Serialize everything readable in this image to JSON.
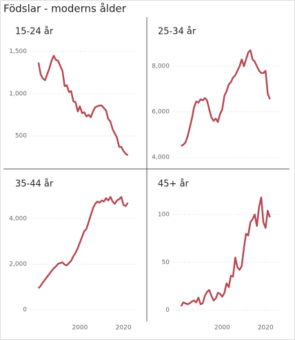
{
  "title": "Födslar - moderns ålder",
  "chart_data": [
    {
      "type": "line",
      "title": "15-24 år",
      "x": [
        1981,
        1982,
        1983,
        1984,
        1985,
        1986,
        1987,
        1988,
        1989,
        1990,
        1991,
        1992,
        1993,
        1994,
        1995,
        1996,
        1997,
        1998,
        1999,
        2000,
        2001,
        2002,
        2003,
        2004,
        2005,
        2006,
        2007,
        2008,
        2009,
        2010,
        2011,
        2012,
        2013,
        2014,
        2015,
        2016,
        2017,
        2018,
        2019,
        2020,
        2021,
        2022
      ],
      "series": [
        {
          "name": "15-24 år",
          "color": "#b8474f",
          "values": [
            1370,
            1230,
            1180,
            1160,
            1230,
            1300,
            1390,
            1450,
            1400,
            1390,
            1330,
            1270,
            1090,
            1100,
            1020,
            1030,
            910,
            900,
            790,
            850,
            770,
            780,
            730,
            750,
            720,
            790,
            840,
            850,
            860,
            860,
            830,
            800,
            700,
            670,
            580,
            530,
            480,
            370,
            370,
            320,
            290,
            270
          ]
        }
      ],
      "xlim": [
        1976,
        2025
      ],
      "ylim": [
        190,
        1620
      ],
      "yticks": [
        500,
        {
          "value": 1000,
          "label": "1,000"
        },
        {
          "value": 1500,
          "label": "1,500"
        }
      ],
      "grid": true
    },
    {
      "type": "line",
      "title": "25-34 år",
      "x": [
        1981,
        1982,
        1983,
        1984,
        1985,
        1986,
        1987,
        1988,
        1989,
        1990,
        1991,
        1992,
        1993,
        1994,
        1995,
        1996,
        1997,
        1998,
        1999,
        2000,
        2001,
        2002,
        2003,
        2004,
        2005,
        2006,
        2007,
        2008,
        2009,
        2010,
        2011,
        2012,
        2013,
        2014,
        2015,
        2016,
        2017,
        2018,
        2019,
        2020,
        2021,
        2022
      ],
      "series": [
        {
          "name": "25-34 år",
          "color": "#b8474f",
          "values": [
            4500,
            4550,
            4650,
            4900,
            5300,
            5700,
            6200,
            6450,
            6400,
            6550,
            6500,
            6600,
            6500,
            6100,
            5750,
            5600,
            5700,
            5550,
            5900,
            6100,
            6700,
            6900,
            7200,
            7300,
            7500,
            7600,
            7800,
            8000,
            8300,
            8000,
            8300,
            8600,
            8700,
            8300,
            8200,
            8000,
            7800,
            7700,
            7700,
            7800,
            6800,
            6550
          ]
        }
      ],
      "xlim": [
        1976,
        2025
      ],
      "ylim": [
        3790,
        9090
      ],
      "yticks": [
        {
          "value": 4000,
          "label": "4,000"
        },
        {
          "value": 6000,
          "label": "6,000"
        },
        {
          "value": 8000,
          "label": "8,000"
        }
      ],
      "grid": true
    },
    {
      "type": "line",
      "title": "35-44 år",
      "x": [
        1981,
        1982,
        1983,
        1984,
        1985,
        1986,
        1987,
        1988,
        1989,
        1990,
        1991,
        1992,
        1993,
        1994,
        1995,
        1996,
        1997,
        1998,
        1999,
        2000,
        2001,
        2002,
        2003,
        2004,
        2005,
        2006,
        2007,
        2008,
        2009,
        2010,
        2011,
        2012,
        2013,
        2014,
        2015,
        2016,
        2017,
        2018,
        2019,
        2020,
        2021,
        2022
      ],
      "series": [
        {
          "name": "35-44 år",
          "color": "#b8474f",
          "values": [
            940,
            1050,
            1200,
            1320,
            1450,
            1570,
            1700,
            1820,
            1900,
            2020,
            2050,
            2080,
            1980,
            1950,
            2050,
            2150,
            2350,
            2500,
            2700,
            2950,
            3200,
            3450,
            3550,
            3850,
            4150,
            4450,
            4650,
            4750,
            4700,
            4800,
            4750,
            4900,
            4800,
            4950,
            4750,
            4650,
            4800,
            4850,
            4950,
            4600,
            4550,
            4700
          ]
        }
      ],
      "xlim": [
        1976,
        2025
      ],
      "ylim": [
        -390,
        5060
      ],
      "xticks": [
        2000,
        2020
      ],
      "yticks": [
        0,
        {
          "value": 2000,
          "label": "2,000"
        },
        {
          "value": 4000,
          "label": "4,000"
        }
      ],
      "grid": true
    },
    {
      "type": "line",
      "title": "45+ år",
      "x": [
        1981,
        1982,
        1983,
        1984,
        1985,
        1986,
        1987,
        1988,
        1989,
        1990,
        1991,
        1992,
        1993,
        1994,
        1995,
        1996,
        1997,
        1998,
        1999,
        2000,
        2001,
        2002,
        2003,
        2004,
        2005,
        2006,
        2007,
        2008,
        2009,
        2010,
        2011,
        2012,
        2013,
        2014,
        2015,
        2016,
        2017,
        2018,
        2019,
        2020,
        2021,
        2022
      ],
      "series": [
        {
          "name": "45+ år",
          "color": "#b8474f",
          "values": [
            4,
            8,
            7,
            6,
            7,
            9,
            10,
            8,
            13,
            6,
            7,
            15,
            19,
            21,
            15,
            10,
            12,
            18,
            17,
            14,
            18,
            28,
            24,
            36,
            35,
            55,
            45,
            42,
            46,
            65,
            80,
            78,
            92,
            95,
            100,
            88,
            108,
            118,
            92,
            86,
            104,
            97
          ]
        }
      ],
      "xlim": [
        1976,
        2025
      ],
      "ylim": [
        -9,
        121
      ],
      "xticks": [
        2000,
        2020
      ],
      "yticks": [
        0,
        50,
        100
      ],
      "grid": true
    }
  ]
}
